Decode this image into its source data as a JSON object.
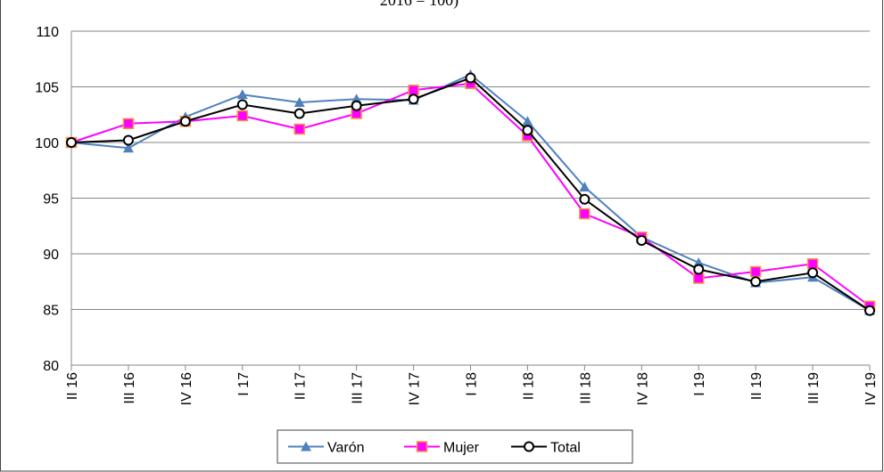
{
  "chart_data": {
    "type": "line",
    "title": "2016 = 100)",
    "categories": [
      "II 16",
      "III 16",
      "IV 16",
      "I 17",
      "II 17",
      "III 17",
      "IV 17",
      "I 18",
      "II 18",
      "III 18",
      "IV 18",
      "I 19",
      "II 19",
      "III 19",
      "IV 19"
    ],
    "series": [
      {
        "name": "Varón",
        "color": "#4f81bd",
        "marker": "triangle",
        "values": [
          100,
          99.5,
          102.3,
          104.3,
          103.6,
          103.9,
          103.8,
          106.1,
          101.9,
          96.0,
          91.5,
          89.2,
          87.4,
          87.9,
          84.9
        ]
      },
      {
        "name": "Mujer",
        "color": "#ff00ff",
        "marker": "square",
        "values": [
          100,
          101.7,
          101.9,
          102.4,
          101.2,
          102.6,
          104.7,
          105.3,
          100.6,
          93.6,
          91.5,
          87.8,
          88.4,
          89.1,
          85.3
        ]
      },
      {
        "name": "Total",
        "color": "#000000",
        "marker": "circle",
        "values": [
          100,
          100.2,
          101.9,
          103.4,
          102.6,
          103.3,
          103.9,
          105.8,
          101.1,
          94.9,
          91.2,
          88.6,
          87.5,
          88.3,
          84.9
        ]
      }
    ],
    "ylim": [
      80,
      110
    ],
    "yticks": [
      80,
      85,
      90,
      95,
      100,
      105,
      110
    ],
    "grid": true
  }
}
